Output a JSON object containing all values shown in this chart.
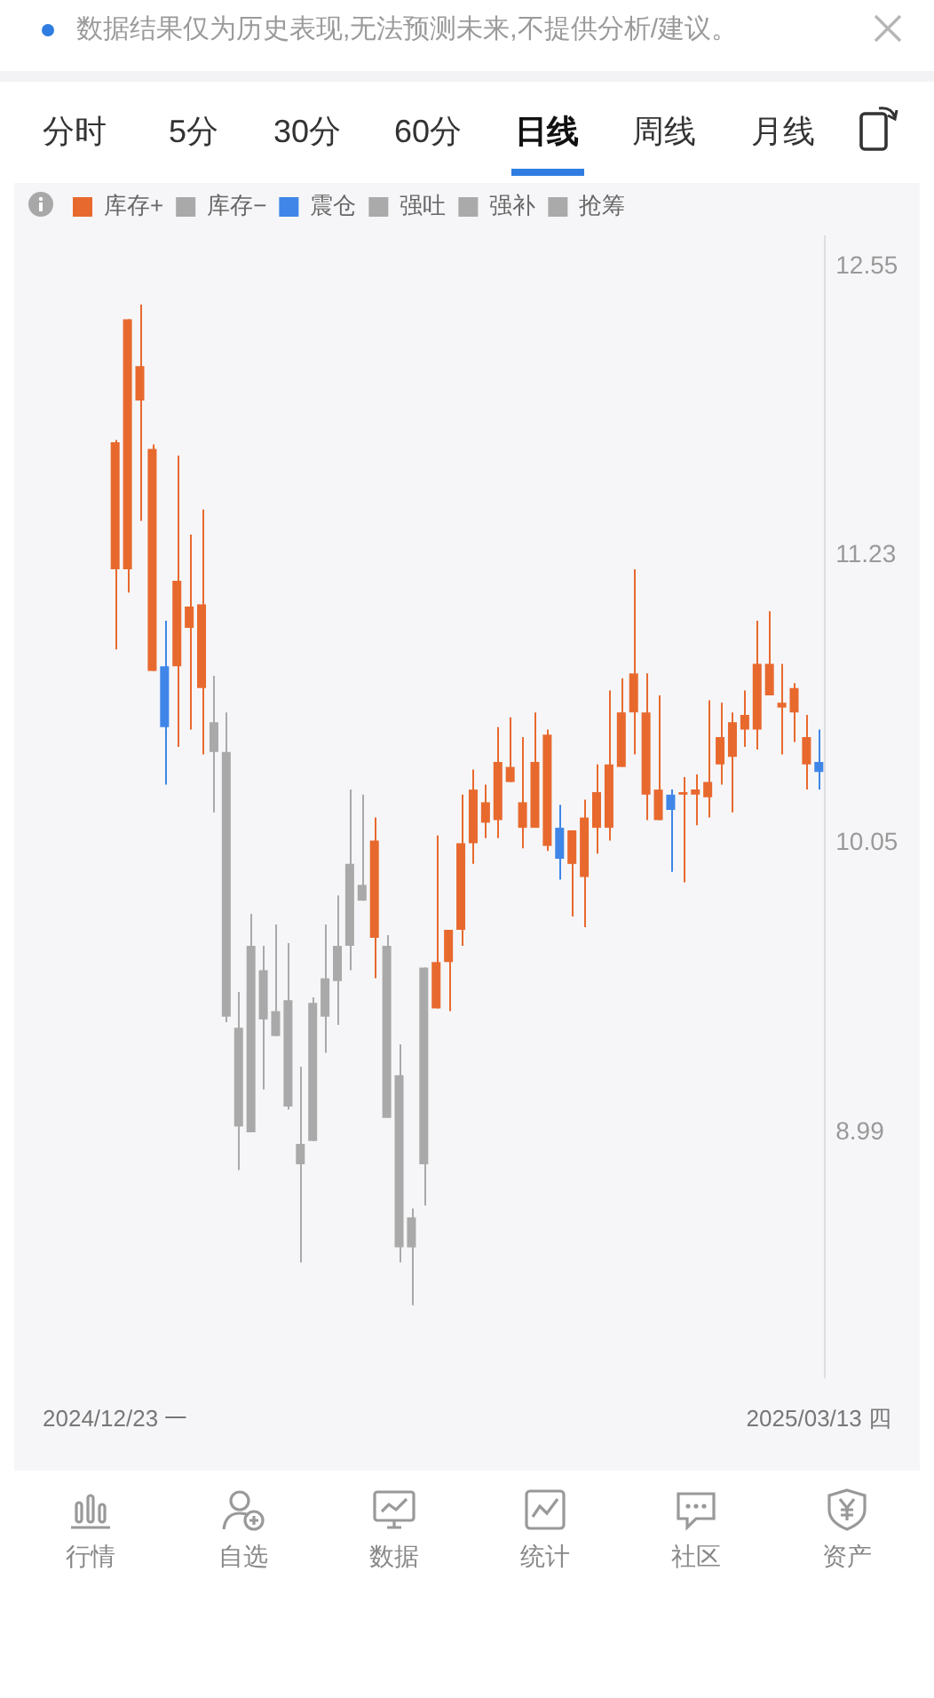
{
  "chart_data": {
    "type": "candlestick",
    "annotations": [
      "数据结果仅为历史表现,无法预测未来,不提供分析/建议。",
      "分时",
      "5分",
      "30分",
      "60分",
      "日线",
      "周线",
      "月线",
      "行情",
      "自选",
      "数据",
      "统计",
      "社区",
      "资产"
    ],
    "categories": [
      "2024/12/23 一",
      null,
      null,
      null,
      null,
      null,
      null,
      null,
      null,
      null,
      null,
      null,
      null,
      null,
      null,
      null,
      null,
      null,
      null,
      null,
      null,
      null,
      null,
      null,
      null,
      null,
      null,
      null,
      null,
      null,
      null,
      null,
      null,
      null,
      null,
      null,
      null,
      null,
      null,
      null,
      null,
      null,
      null,
      null,
      null,
      null,
      null,
      null,
      null,
      null,
      null,
      null,
      null,
      null,
      null,
      null,
      null,
      "2025/03/13 四"
    ],
    "log": true,
    "ylim": [
      8.18,
      12.7
    ],
    "yticks": [
      12.55,
      11.23,
      10.05,
      8.99
    ],
    "legend": "top left",
    "series": [
      {
        "name": "库存+",
        "color": "#e8692e",
        "ohlc": [
          [
            11.17,
            11.74,
            10.83,
            11.73
          ],
          [
            11.17,
            12.3,
            11.07,
            12.3
          ],
          [
            11.92,
            12.37,
            11.38,
            12.08
          ],
          [
            10.74,
            11.72,
            10.74,
            11.7
          ],
          null,
          [
            10.76,
            11.67,
            10.43,
            11.12
          ],
          [
            10.92,
            11.32,
            10.5,
            11.01
          ],
          [
            10.67,
            11.43,
            10.4,
            11.02
          ],
          null,
          null,
          null,
          null,
          null,
          null,
          null,
          null,
          null,
          null,
          null,
          null,
          null,
          [
            9.69,
            10.15,
            9.54,
            10.06
          ],
          null,
          null,
          null,
          null,
          [
            9.43,
            10.08,
            9.43,
            9.6
          ],
          [
            9.6,
            9.72,
            9.42,
            9.72
          ],
          [
            9.72,
            10.24,
            9.66,
            10.05
          ],
          [
            10.05,
            10.34,
            9.97,
            10.26
          ],
          [
            10.13,
            10.28,
            10.07,
            10.21
          ],
          [
            10.14,
            10.51,
            10.07,
            10.37
          ],
          [
            10.29,
            10.55,
            10.29,
            10.35
          ],
          [
            10.11,
            10.47,
            10.03,
            10.21
          ],
          [
            10.11,
            10.57,
            10.11,
            10.37
          ],
          [
            10.04,
            10.5,
            10.02,
            10.48
          ],
          null,
          [
            9.97,
            10.1,
            9.77,
            10.1
          ],
          [
            9.92,
            10.22,
            9.73,
            10.15
          ],
          [
            10.11,
            10.36,
            10.01,
            10.25
          ],
          [
            10.11,
            10.66,
            10.06,
            10.36
          ],
          [
            10.35,
            10.71,
            10.35,
            10.57
          ],
          [
            10.57,
            11.17,
            10.4,
            10.73
          ],
          [
            10.24,
            10.73,
            10.14,
            10.57
          ],
          [
            10.14,
            10.64,
            10.14,
            10.26
          ],
          null,
          [
            10.24,
            10.31,
            9.9,
            10.25
          ],
          [
            10.24,
            10.32,
            10.12,
            10.26
          ],
          [
            10.23,
            10.62,
            10.15,
            10.29
          ],
          [
            10.36,
            10.61,
            10.28,
            10.47
          ],
          [
            10.39,
            10.57,
            10.17,
            10.53
          ],
          [
            10.5,
            10.66,
            10.43,
            10.56
          ],
          [
            10.5,
            10.95,
            10.42,
            10.77
          ],
          [
            10.64,
            10.99,
            10.64,
            10.77
          ],
          [
            10.59,
            10.77,
            10.4,
            10.61
          ],
          [
            10.57,
            10.69,
            10.45,
            10.67
          ],
          [
            10.36,
            10.56,
            10.26,
            10.47
          ],
          null
        ]
      },
      {
        "name": "库存−",
        "color": "#a9a9a9",
        "ohlc": [
          null,
          null,
          null,
          null,
          null,
          null,
          null,
          null,
          [
            10.53,
            10.72,
            10.17,
            10.41
          ],
          [
            10.41,
            10.57,
            9.38,
            9.4
          ],
          [
            9.36,
            9.49,
            8.86,
            9.01
          ],
          [
            9.66,
            9.78,
            8.99,
            8.99
          ],
          [
            9.57,
            9.66,
            9.14,
            9.39
          ],
          [
            9.42,
            9.74,
            9.33,
            9.33
          ],
          [
            9.46,
            9.67,
            9.07,
            9.08
          ],
          [
            8.95,
            9.22,
            8.55,
            8.88
          ],
          [
            9.45,
            9.47,
            8.96,
            8.96
          ],
          [
            9.54,
            9.74,
            9.27,
            9.4
          ],
          [
            9.66,
            9.85,
            9.37,
            9.53
          ],
          [
            9.97,
            10.26,
            9.57,
            9.66
          ],
          [
            9.89,
            10.24,
            9.83,
            9.83
          ],
          null,
          [
            9.66,
            9.7,
            9.04,
            9.04
          ],
          [
            9.19,
            9.3,
            8.55,
            8.6
          ],
          [
            8.7,
            8.73,
            8.41,
            8.6
          ],
          [
            9.58,
            9.58,
            8.74,
            8.88
          ],
          null,
          null,
          null,
          null,
          null,
          null,
          null,
          null,
          null,
          null,
          null,
          null,
          null,
          null,
          null,
          null,
          null,
          null,
          null,
          null,
          null,
          null,
          null,
          null,
          null,
          null,
          null,
          null,
          null,
          null,
          null,
          null
        ]
      },
      {
        "name": "震仓",
        "color": "#3f86e8",
        "ohlc": [
          null,
          null,
          null,
          null,
          [
            10.76,
            10.95,
            10.28,
            10.51
          ],
          null,
          null,
          null,
          null,
          null,
          null,
          null,
          null,
          null,
          null,
          null,
          null,
          null,
          null,
          null,
          null,
          null,
          null,
          null,
          null,
          null,
          null,
          null,
          null,
          null,
          null,
          null,
          null,
          null,
          null,
          null,
          [
            10.11,
            10.2,
            9.91,
            9.99
          ],
          null,
          null,
          null,
          null,
          null,
          null,
          null,
          null,
          [
            10.24,
            10.26,
            9.94,
            10.18
          ],
          null,
          null,
          null,
          null,
          null,
          null,
          null,
          null,
          null,
          null,
          null,
          [
            10.37,
            10.5,
            10.26,
            10.33
          ]
        ]
      },
      {
        "name": "强吐",
        "color": "#aaaaaa",
        "ohlc": [
          null,
          null,
          null,
          null,
          null,
          null,
          null,
          null,
          null,
          null,
          null,
          null,
          null,
          null,
          null,
          null,
          null,
          null,
          null,
          null,
          null,
          null,
          null,
          null,
          null,
          null,
          null,
          null,
          null,
          null,
          null,
          null,
          null,
          null,
          null,
          null,
          null,
          null,
          null,
          null,
          null,
          null,
          null,
          null,
          null,
          null,
          null,
          null,
          null,
          null,
          null,
          null,
          null,
          null,
          null,
          null,
          null,
          null
        ]
      },
      {
        "name": "强补",
        "color": "#aaaaaa",
        "ohlc": [
          null,
          null,
          null,
          null,
          null,
          null,
          null,
          null,
          null,
          null,
          null,
          null,
          null,
          null,
          null,
          null,
          null,
          null,
          null,
          null,
          null,
          null,
          null,
          null,
          null,
          null,
          null,
          null,
          null,
          null,
          null,
          null,
          null,
          null,
          null,
          null,
          null,
          null,
          null,
          null,
          null,
          null,
          null,
          null,
          null,
          null,
          null,
          null,
          null,
          null,
          null,
          null,
          null,
          null,
          null,
          null,
          null,
          null
        ]
      },
      {
        "name": "抢筹",
        "color": "#aaaaaa",
        "ohlc": [
          null,
          null,
          null,
          null,
          null,
          null,
          null,
          null,
          null,
          null,
          null,
          null,
          null,
          null,
          null,
          null,
          null,
          null,
          null,
          null,
          null,
          null,
          null,
          null,
          null,
          null,
          null,
          null,
          null,
          null,
          null,
          null,
          null,
          null,
          null,
          null,
          null,
          null,
          null,
          null,
          null,
          null,
          null,
          null,
          null,
          null,
          null,
          null,
          null,
          null,
          null,
          null,
          null,
          null,
          null,
          null,
          null,
          null
        ]
      }
    ]
  }
}
